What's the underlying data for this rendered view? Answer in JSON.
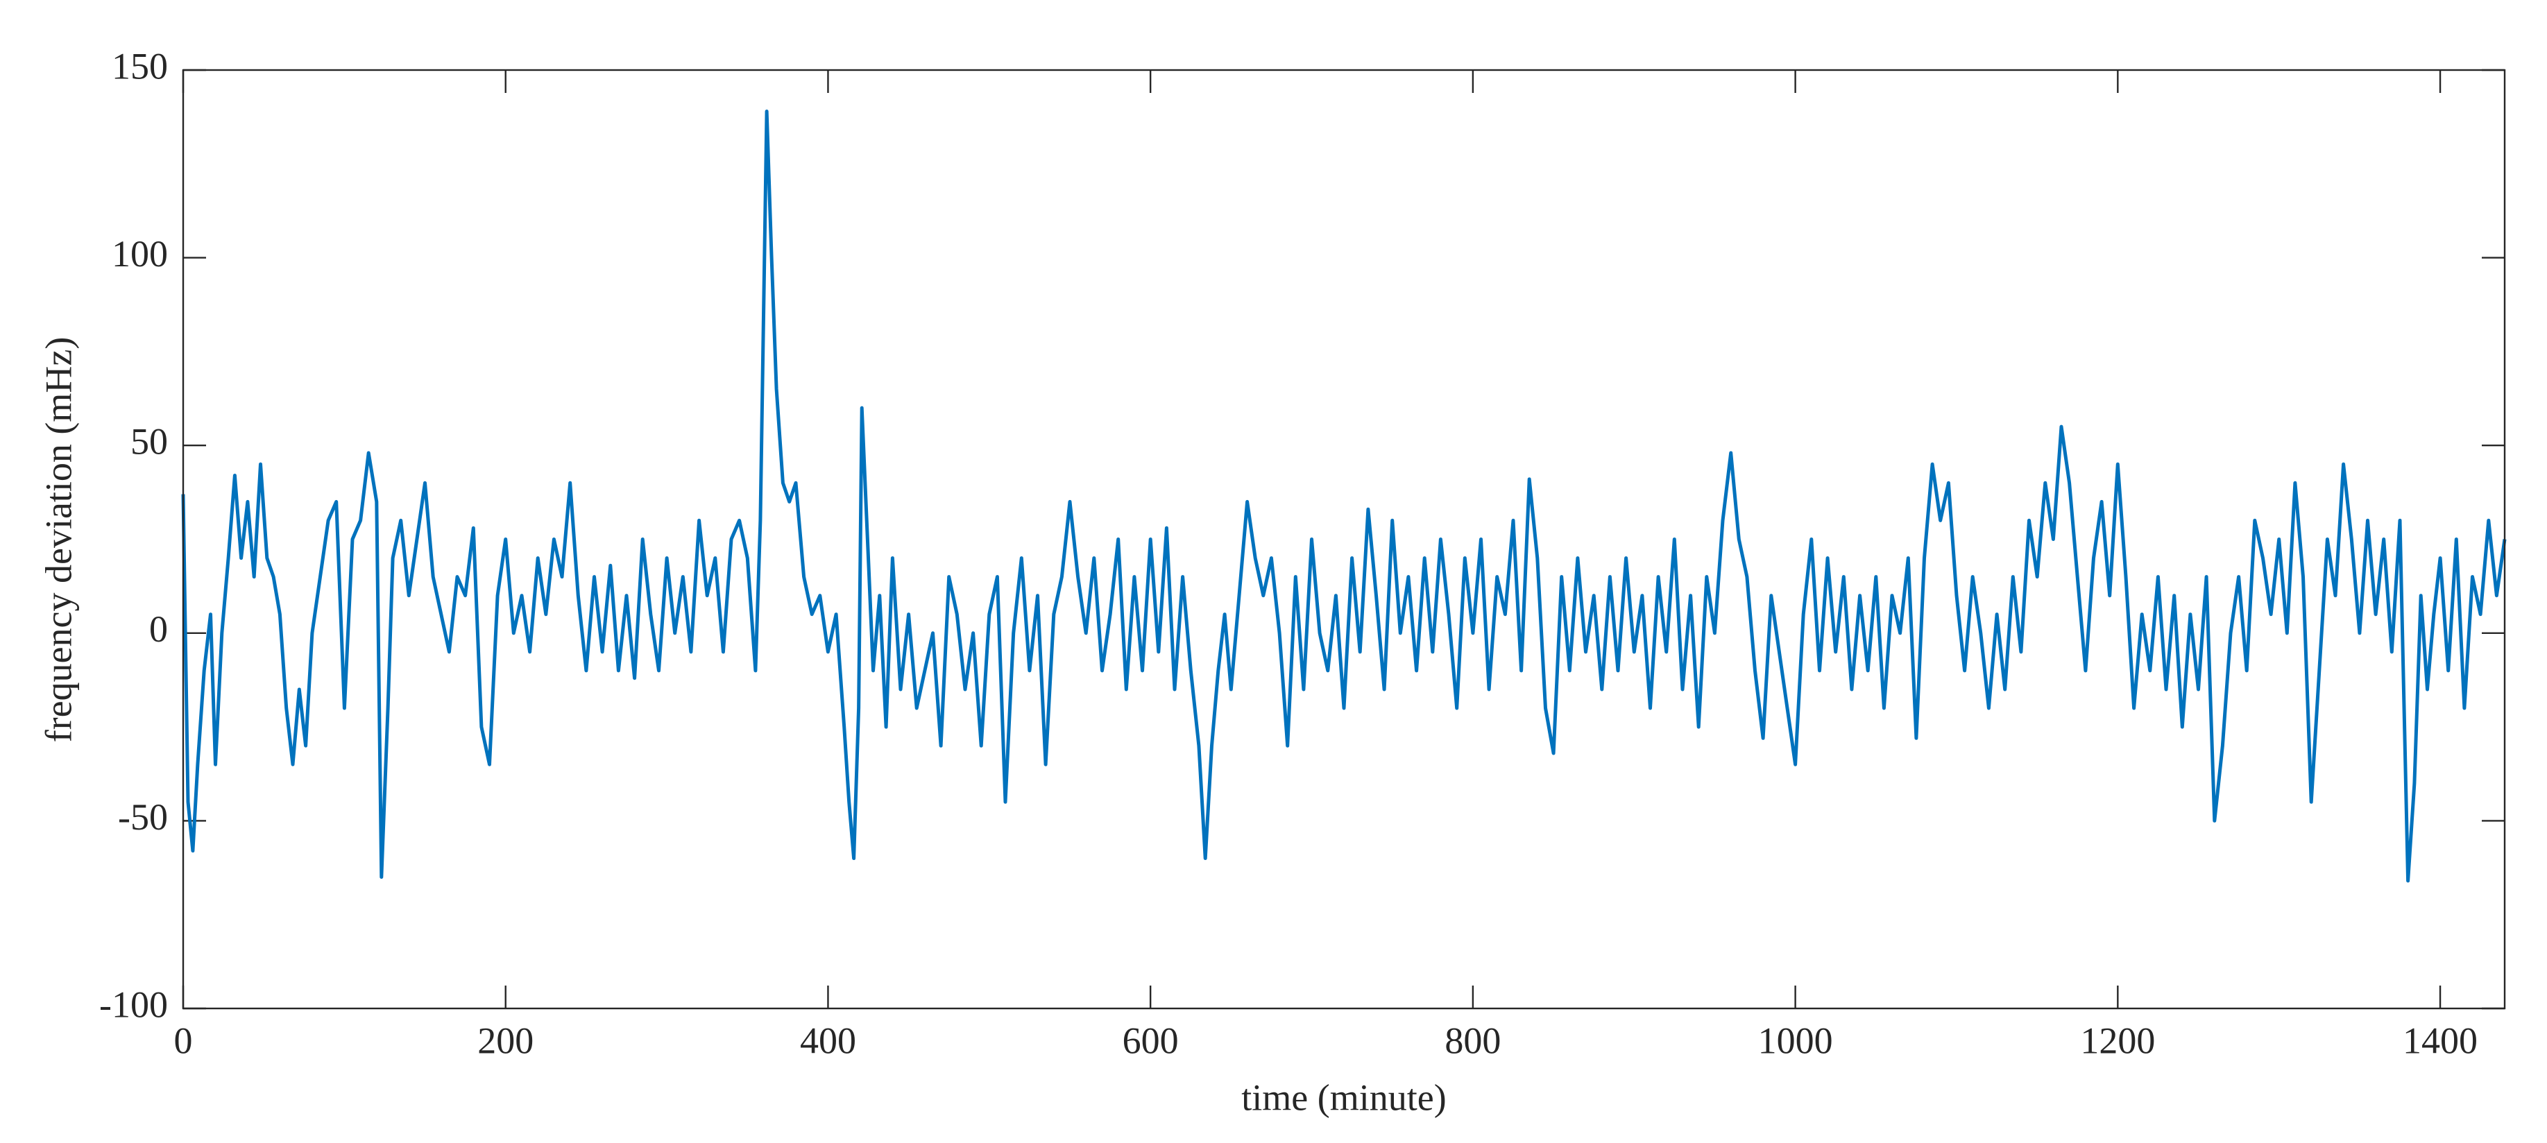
{
  "chart_data": {
    "type": "line",
    "x_label": "time (minute)",
    "y_label": "frequency deviation (mHz)",
    "color": "#0072bd",
    "xlim": [
      0,
      1440
    ],
    "xticks": [
      0,
      200,
      400,
      600,
      800,
      1000,
      1200,
      1400
    ],
    "ylim": [
      -100,
      150
    ],
    "yticks": [
      -100,
      -50,
      0,
      50,
      100,
      150
    ],
    "grid": false,
    "x": [
      0,
      3,
      6,
      9,
      13,
      17,
      20,
      24,
      28,
      32,
      36,
      40,
      44,
      48,
      52,
      56,
      60,
      64,
      68,
      72,
      76,
      80,
      85,
      90,
      95,
      100,
      105,
      110,
      115,
      120,
      123,
      127,
      130,
      135,
      140,
      145,
      150,
      155,
      160,
      165,
      170,
      175,
      180,
      185,
      190,
      195,
      200,
      205,
      210,
      215,
      220,
      225,
      230,
      235,
      240,
      245,
      250,
      255,
      260,
      265,
      270,
      275,
      280,
      285,
      290,
      295,
      300,
      305,
      310,
      315,
      320,
      325,
      330,
      335,
      340,
      345,
      350,
      355,
      358,
      362,
      365,
      368,
      372,
      376,
      380,
      385,
      390,
      395,
      400,
      405,
      410,
      413,
      416,
      419,
      421,
      424,
      428,
      432,
      436,
      440,
      445,
      450,
      455,
      460,
      465,
      470,
      475,
      480,
      485,
      490,
      495,
      500,
      505,
      510,
      515,
      520,
      525,
      530,
      535,
      540,
      545,
      550,
      555,
      560,
      565,
      570,
      575,
      580,
      585,
      590,
      595,
      600,
      605,
      610,
      615,
      620,
      625,
      630,
      634,
      638,
      642,
      646,
      650,
      655,
      660,
      665,
      670,
      675,
      680,
      685,
      690,
      695,
      700,
      705,
      710,
      715,
      720,
      725,
      730,
      735,
      740,
      745,
      750,
      755,
      760,
      765,
      770,
      775,
      780,
      785,
      790,
      795,
      800,
      805,
      810,
      815,
      820,
      825,
      830,
      835,
      840,
      845,
      850,
      855,
      860,
      865,
      870,
      875,
      880,
      885,
      890,
      895,
      900,
      905,
      910,
      915,
      920,
      925,
      930,
      935,
      940,
      945,
      950,
      955,
      960,
      965,
      970,
      975,
      980,
      985,
      990,
      995,
      1000,
      1005,
      1010,
      1015,
      1020,
      1025,
      1030,
      1035,
      1040,
      1045,
      1050,
      1055,
      1060,
      1065,
      1070,
      1075,
      1080,
      1085,
      1090,
      1095,
      1100,
      1105,
      1110,
      1115,
      1120,
      1125,
      1130,
      1135,
      1140,
      1145,
      1150,
      1155,
      1160,
      1165,
      1170,
      1175,
      1180,
      1185,
      1190,
      1195,
      1200,
      1205,
      1210,
      1215,
      1220,
      1225,
      1230,
      1235,
      1240,
      1245,
      1250,
      1255,
      1260,
      1265,
      1270,
      1275,
      1280,
      1285,
      1290,
      1295,
      1300,
      1305,
      1310,
      1315,
      1320,
      1325,
      1330,
      1335,
      1340,
      1345,
      1350,
      1355,
      1360,
      1365,
      1370,
      1375,
      1380,
      1384,
      1388,
      1392,
      1396,
      1400,
      1405,
      1410,
      1415,
      1420,
      1425,
      1430,
      1435,
      1440
    ],
    "values": [
      37,
      -45,
      -58,
      -35,
      -10,
      5,
      -35,
      0,
      20,
      42,
      20,
      35,
      15,
      45,
      20,
      15,
      5,
      -20,
      -35,
      -15,
      -30,
      0,
      15,
      30,
      35,
      -20,
      25,
      30,
      48,
      35,
      -65,
      -20,
      20,
      30,
      10,
      25,
      40,
      15,
      5,
      -5,
      15,
      10,
      28,
      -25,
      -35,
      10,
      25,
      0,
      10,
      -5,
      20,
      5,
      25,
      15,
      40,
      10,
      -10,
      15,
      -5,
      18,
      -10,
      10,
      -12,
      25,
      5,
      -10,
      20,
      0,
      15,
      -5,
      30,
      10,
      20,
      -5,
      25,
      30,
      20,
      -10,
      30,
      139,
      100,
      65,
      40,
      35,
      40,
      15,
      5,
      10,
      -5,
      5,
      -25,
      -45,
      -60,
      -20,
      60,
      30,
      -10,
      10,
      -25,
      20,
      -15,
      5,
      -20,
      -10,
      0,
      -30,
      15,
      5,
      -15,
      0,
      -30,
      5,
      15,
      -45,
      0,
      20,
      -10,
      10,
      -35,
      5,
      15,
      35,
      15,
      0,
      20,
      -10,
      5,
      25,
      -15,
      15,
      -10,
      25,
      -5,
      28,
      -15,
      15,
      -10,
      -30,
      -60,
      -30,
      -10,
      5,
      -15,
      10,
      35,
      20,
      10,
      20,
      0,
      -30,
      15,
      -15,
      25,
      0,
      -10,
      10,
      -20,
      20,
      -5,
      33,
      10,
      -15,
      30,
      0,
      15,
      -10,
      20,
      -5,
      25,
      5,
      -20,
      20,
      0,
      25,
      -15,
      15,
      5,
      30,
      -10,
      41,
      20,
      -20,
      -32,
      15,
      -10,
      20,
      -5,
      10,
      -15,
      15,
      -10,
      20,
      -5,
      10,
      -20,
      15,
      -5,
      25,
      -15,
      10,
      -25,
      15,
      0,
      30,
      48,
      25,
      15,
      -10,
      -28,
      10,
      -5,
      -20,
      -35,
      5,
      25,
      -10,
      20,
      -5,
      15,
      -15,
      10,
      -10,
      15,
      -20,
      10,
      0,
      20,
      -28,
      20,
      45,
      30,
      40,
      10,
      -10,
      15,
      0,
      -20,
      5,
      -15,
      15,
      -5,
      30,
      15,
      40,
      25,
      55,
      40,
      15,
      -10,
      20,
      35,
      10,
      45,
      15,
      -20,
      5,
      -10,
      15,
      -15,
      10,
      -25,
      5,
      -15,
      15,
      -50,
      -30,
      0,
      15,
      -10,
      30,
      20,
      5,
      25,
      0,
      40,
      15,
      -45,
      -10,
      25,
      10,
      45,
      25,
      0,
      30,
      5,
      25,
      -5,
      30,
      -66,
      -40,
      10,
      -15,
      5,
      20,
      -10,
      25,
      -20,
      15,
      5,
      30,
      10,
      25
    ]
  }
}
